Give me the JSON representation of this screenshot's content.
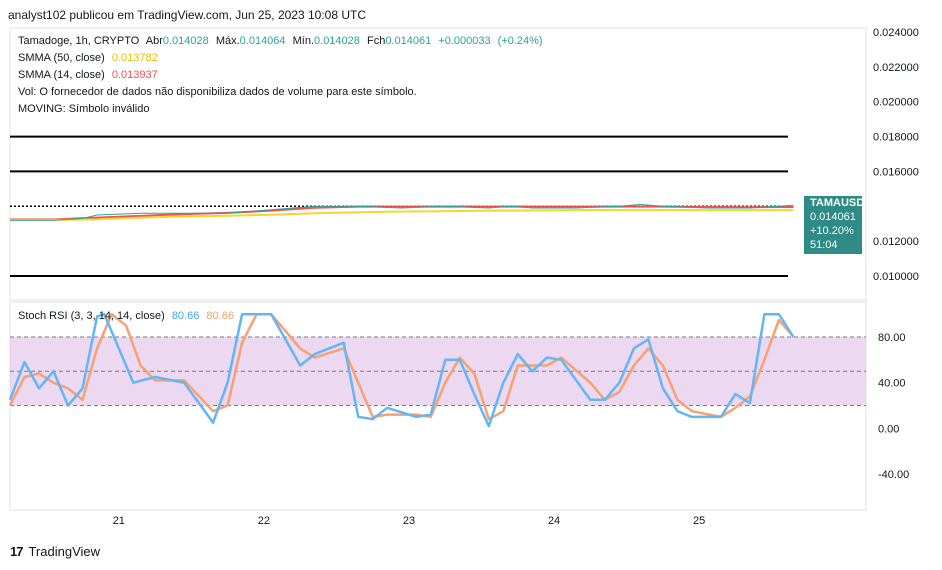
{
  "header": {
    "published": "analyst102 publicou em TradingView.com, Jun 25, 2023 10:08 UTC"
  },
  "legend": {
    "symbol_line": {
      "name": "Tamadoge, 1h, CRYPTO",
      "open_label": "Abr",
      "open": "0.014028",
      "high_label": "Máx.",
      "high": "0.014064",
      "low_label": "Mín.",
      "low": "0.014028",
      "close_label": "Fch",
      "close": "0.014061",
      "change": "+0.000033",
      "change_pct": "(+0.24%)"
    },
    "sma50": {
      "label": "SMMA (50, close)",
      "value": "0.013782",
      "color": "#f5d533"
    },
    "sma14": {
      "label": "SMMA (14, close)",
      "value": "0.013937",
      "color": "#f05350"
    },
    "vol_note": "Vol: O fornecedor de dados não disponibiliza dados de volume para este símbolo.",
    "moving_note": "MOVING: Símbolo inválido"
  },
  "price_badge": {
    "ticker": "TAMAUSD",
    "price": "0.014061",
    "change": "+10.20%",
    "timer": "51:04"
  },
  "stoch_legend": {
    "label": "Stoch RSI (3, 3, 14, 14, close)",
    "k": "80.66",
    "d": "80.66",
    "k_color": "#64b5f6",
    "d_color": "#f7a072"
  },
  "footer": {
    "brand": "TradingView"
  },
  "chart_data": [
    {
      "type": "line",
      "title": "Tamadoge, 1h, CRYPTO",
      "ylim": [
        0.009,
        0.0245
      ],
      "y_ticks": [
        "0.024000",
        "0.022000",
        "0.020000",
        "0.018000",
        "0.016000",
        "0.012000",
        "0.010000"
      ],
      "horizontal_levels": [
        0.018,
        0.016,
        0.014,
        0.01
      ],
      "x_ticks": [
        "21",
        "22",
        "23",
        "24",
        "25"
      ],
      "x_tick_pos": [
        20.75,
        21.75,
        22.75,
        23.75,
        24.75
      ],
      "xlim": [
        20.0,
        25.9
      ],
      "series": [
        {
          "name": "SMMA (14, close)",
          "color": "#f05350",
          "x": [
            20.0,
            20.3,
            20.6,
            20.9,
            21.2,
            21.5,
            21.8,
            22.1,
            22.4,
            22.7,
            23.0,
            23.3,
            23.6,
            23.9,
            24.2,
            24.5,
            24.8,
            25.1,
            25.4
          ],
          "y": [
            0.01325,
            0.01325,
            0.01335,
            0.01345,
            0.01355,
            0.01362,
            0.01375,
            0.01392,
            0.01398,
            0.01398,
            0.01398,
            0.01398,
            0.01398,
            0.01398,
            0.01398,
            0.01398,
            0.01396,
            0.01395,
            0.01396
          ]
        },
        {
          "name": "SMMA (50, close)",
          "color": "#f5d533",
          "x": [
            20.0,
            20.3,
            20.6,
            20.9,
            21.2,
            21.5,
            21.8,
            22.1,
            22.4,
            22.7,
            23.0,
            23.3,
            23.6,
            23.9,
            24.2,
            24.5,
            24.8,
            25.1,
            25.4
          ],
          "y": [
            0.01322,
            0.01322,
            0.01325,
            0.01335,
            0.01342,
            0.01346,
            0.01352,
            0.0136,
            0.01366,
            0.0137,
            0.01372,
            0.01375,
            0.01376,
            0.01378,
            0.01378,
            0.01378,
            0.01378,
            0.01378,
            0.01378
          ]
        },
        {
          "name": "close",
          "color": "#26a69a",
          "x": [
            20.0,
            20.3,
            20.5,
            20.6,
            20.9,
            21.2,
            21.5,
            21.8,
            22.1,
            22.4,
            22.7,
            23.0,
            23.3,
            23.45,
            23.6,
            23.9,
            24.2,
            24.35,
            24.5,
            24.8,
            25.1,
            25.4
          ],
          "y": [
            0.0132,
            0.0132,
            0.0133,
            0.0135,
            0.0136,
            0.0136,
            0.0136,
            0.0138,
            0.014,
            0.014,
            0.0139,
            0.014,
            0.0139,
            0.014,
            0.0139,
            0.0139,
            0.014,
            0.0141,
            0.014,
            0.0139,
            0.0139,
            0.01406
          ]
        }
      ]
    },
    {
      "type": "line",
      "title": "Stoch RSI (3, 3, 14, 14, close)",
      "ylim": [
        -60,
        110
      ],
      "y_ticks": [
        "80.00",
        "40.00",
        "0.00",
        "-40.00"
      ],
      "bands": [
        20,
        50,
        80
      ],
      "series": [
        {
          "name": "K",
          "color": "#64b5f6",
          "x": [
            20.0,
            20.1,
            20.2,
            20.3,
            20.4,
            20.5,
            20.6,
            20.65,
            20.75,
            20.85,
            21.0,
            21.2,
            21.4,
            21.5,
            21.6,
            21.7,
            21.8,
            22.0,
            22.1,
            22.3,
            22.4,
            22.5,
            22.6,
            22.8,
            22.9,
            23.0,
            23.1,
            23.2,
            23.3,
            23.4,
            23.5,
            23.6,
            23.7,
            23.8,
            24.0,
            24.1,
            24.2,
            24.3,
            24.4,
            24.5,
            24.6,
            24.7,
            24.9,
            25.0,
            25.1,
            25.2,
            25.3,
            25.4
          ],
          "y": [
            25,
            58,
            35,
            50,
            20,
            35,
            98,
            100,
            70,
            40,
            45,
            40,
            5,
            40,
            100,
            100,
            100,
            55,
            65,
            75,
            10,
            8,
            18,
            10,
            12,
            60,
            60,
            30,
            2,
            40,
            65,
            50,
            62,
            60,
            25,
            25,
            40,
            70,
            78,
            35,
            15,
            10,
            10,
            30,
            22,
            100,
            100,
            80
          ]
        },
        {
          "name": "D",
          "color": "#f7a072",
          "x": [
            20.0,
            20.1,
            20.2,
            20.3,
            20.4,
            20.5,
            20.6,
            20.7,
            20.8,
            20.9,
            21.0,
            21.2,
            21.4,
            21.5,
            21.6,
            21.7,
            21.8,
            22.0,
            22.1,
            22.3,
            22.4,
            22.5,
            22.6,
            22.8,
            22.9,
            23.0,
            23.1,
            23.2,
            23.3,
            23.4,
            23.5,
            23.6,
            23.7,
            23.8,
            24.0,
            24.1,
            24.2,
            24.3,
            24.4,
            24.5,
            24.6,
            24.7,
            24.9,
            25.0,
            25.1,
            25.2,
            25.3,
            25.4
          ],
          "y": [
            20,
            45,
            48,
            40,
            35,
            25,
            70,
            100,
            90,
            55,
            42,
            42,
            15,
            20,
            75,
            100,
            100,
            70,
            62,
            70,
            40,
            10,
            12,
            12,
            10,
            40,
            62,
            48,
            8,
            15,
            55,
            55,
            55,
            62,
            40,
            25,
            32,
            55,
            70,
            55,
            25,
            15,
            10,
            18,
            28,
            60,
            95,
            80
          ]
        }
      ]
    }
  ]
}
